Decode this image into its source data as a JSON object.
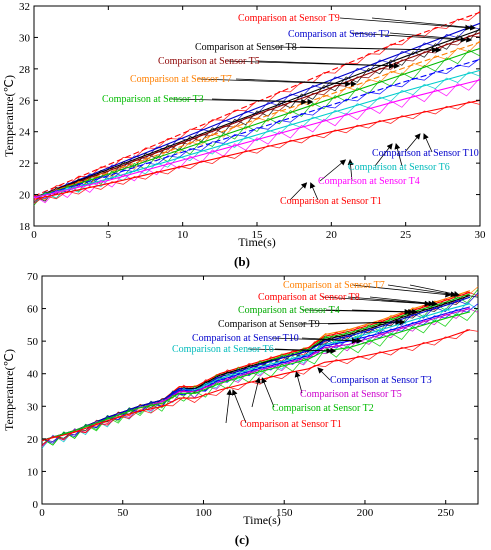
{
  "chart_data": [
    {
      "type": "line",
      "panel_label": "(b)",
      "title": "",
      "xlabel": "Time(s)",
      "ylabel": "Temperature(℃)",
      "xlim": [
        0,
        30
      ],
      "ylim": [
        18,
        32
      ],
      "xticks": [
        "0",
        "5",
        "10",
        "15",
        "20",
        "25",
        "30"
      ],
      "yticks": [
        "18",
        "20",
        "22",
        "24",
        "26",
        "28",
        "30",
        "32"
      ],
      "grid": false,
      "x": [
        0,
        5,
        10,
        15,
        20,
        25,
        30
      ],
      "series": [
        {
          "name": "T9",
          "color": "#ff0000",
          "style": "dashed",
          "values": [
            19.9,
            21.9,
            23.9,
            25.9,
            27.9,
            29.9,
            31.6
          ]
        },
        {
          "name": "T2",
          "color": "#0000cc",
          "style": "solid",
          "values": [
            19.8,
            21.7,
            23.6,
            25.5,
            27.3,
            29.1,
            30.9
          ]
        },
        {
          "name": "T8",
          "color": "#000000",
          "style": "solid",
          "values": [
            19.8,
            21.6,
            23.4,
            25.2,
            27.0,
            28.8,
            30.5
          ]
        },
        {
          "name": "T5",
          "color": "#8b0000",
          "style": "solid",
          "values": [
            19.8,
            21.5,
            23.3,
            25.1,
            26.8,
            28.6,
            30.3
          ]
        },
        {
          "name": "T7",
          "color": "#ff7f00",
          "style": "dashed",
          "values": [
            19.8,
            21.4,
            23.1,
            24.8,
            26.4,
            28.1,
            29.7
          ]
        },
        {
          "name": "T3",
          "color": "#00bb00",
          "style": "solid",
          "values": [
            19.8,
            21.3,
            22.9,
            24.5,
            26.1,
            27.7,
            29.3
          ]
        },
        {
          "name": "T10",
          "color": "#0000ff",
          "style": "dashed",
          "values": [
            19.8,
            21.2,
            22.7,
            24.2,
            25.7,
            27.2,
            28.6
          ]
        },
        {
          "name": "T6",
          "color": "#00cccc",
          "style": "solid",
          "values": [
            19.8,
            21.0,
            22.4,
            23.8,
            25.2,
            26.6,
            27.9
          ]
        },
        {
          "name": "T4",
          "color": "#ff00ff",
          "style": "solid",
          "values": [
            19.8,
            20.9,
            22.2,
            23.5,
            24.8,
            26.1,
            27.3
          ]
        },
        {
          "name": "T1",
          "color": "#ff0000",
          "style": "solid",
          "values": [
            19.7,
            20.7,
            21.8,
            22.9,
            24.0,
            25.0,
            26.0
          ]
        }
      ],
      "annotations": [
        {
          "text": "Comparison at Sensor T9",
          "color": "#ff0000"
        },
        {
          "text": "Comparison at Sensor T2",
          "color": "#0000cc"
        },
        {
          "text": "Comparison at Sensor T8",
          "color": "#000000"
        },
        {
          "text": "Comparison at Sensor T5",
          "color": "#8b0000"
        },
        {
          "text": "Comparison at Sensor T7",
          "color": "#ff7f00"
        },
        {
          "text": "Comparison at Sensor T3",
          "color": "#00bb00"
        },
        {
          "text": "Comparison at Sensor T10",
          "color": "#0000cc"
        },
        {
          "text": "Comparison at Sensor T6",
          "color": "#00bbbb"
        },
        {
          "text": "Comparison at Sensor T4",
          "color": "#ff00ff"
        },
        {
          "text": "Comparison at Sensor T1",
          "color": "#ff0000"
        }
      ]
    },
    {
      "type": "line",
      "panel_label": "(c)",
      "title": "",
      "xlabel": "Time(s)",
      "ylabel": "Temperature(℃)",
      "xlim": [
        0,
        270
      ],
      "ylim": [
        0,
        70
      ],
      "xticks": [
        "0",
        "50",
        "100",
        "150",
        "200",
        "250"
      ],
      "yticks": [
        "0",
        "10",
        "20",
        "30",
        "40",
        "50",
        "60",
        "70"
      ],
      "grid": false,
      "x": [
        0,
        20,
        40,
        60,
        75,
        85,
        95,
        110,
        130,
        150,
        165,
        175,
        190,
        210,
        230,
        250,
        265
      ],
      "series": [
        {
          "name": "T7",
          "color": "#ff7f00",
          "style": "solid",
          "values": [
            19.5,
            22.5,
            26.5,
            30,
            32,
            36,
            36,
            40,
            43,
            46,
            48,
            52,
            53.5,
            56.5,
            60,
            63,
            65.5
          ]
        },
        {
          "name": "T8",
          "color": "#ff0000",
          "style": "solid",
          "values": [
            19.5,
            22.5,
            26.5,
            30,
            32,
            36,
            36,
            40,
            43,
            46,
            48,
            51.5,
            53,
            56,
            59.5,
            62.5,
            65
          ]
        },
        {
          "name": "T4",
          "color": "#00bb00",
          "style": "solid",
          "values": [
            19.5,
            22.5,
            26.5,
            30,
            32,
            35.5,
            35.5,
            39.5,
            42.5,
            45.5,
            47.5,
            51,
            52.5,
            55.5,
            59,
            62,
            64.5
          ]
        },
        {
          "name": "T9",
          "color": "#000000",
          "style": "solid",
          "values": [
            19.5,
            22.5,
            26.5,
            30,
            32,
            35.5,
            35.5,
            39.5,
            42.5,
            45,
            47,
            50.5,
            52,
            55,
            58.5,
            61.5,
            64
          ]
        },
        {
          "name": "T10",
          "color": "#0000cc",
          "style": "solid",
          "values": [
            19.5,
            22.5,
            26.5,
            30,
            32,
            35.5,
            35,
            39,
            42,
            45,
            47,
            50,
            51.5,
            54.5,
            58,
            61,
            63.5
          ]
        },
        {
          "name": "T6",
          "color": "#00cccc",
          "style": "solid",
          "values": [
            19.5,
            22.5,
            26,
            29.5,
            31.5,
            35,
            35,
            38.5,
            41.5,
            44,
            46,
            49,
            50.5,
            53.5,
            56.5,
            59.5,
            61.5
          ]
        },
        {
          "name": "T3",
          "color": "#0000ff",
          "style": "solid",
          "values": [
            19.5,
            22.5,
            26,
            29.5,
            31.5,
            35,
            34.5,
            38,
            41,
            43.5,
            45.5,
            48.5,
            50,
            52.5,
            55.5,
            58.5,
            60.5
          ]
        },
        {
          "name": "T5",
          "color": "#cc00cc",
          "style": "solid",
          "values": [
            19.5,
            22.5,
            26,
            29.5,
            31.5,
            34.5,
            34.5,
            37.5,
            40.5,
            43,
            45,
            48,
            49,
            52,
            55,
            58,
            60
          ]
        },
        {
          "name": "T2",
          "color": "#00cc00",
          "style": "solid",
          "values": [
            19.5,
            22.5,
            26,
            29.5,
            31,
            34,
            34,
            37,
            40,
            42.5,
            44.5,
            47,
            48,
            51,
            54,
            57,
            59
          ]
        },
        {
          "name": "T1",
          "color": "#ff0000",
          "style": "solid",
          "values": [
            19.5,
            22,
            25.5,
            28.5,
            30,
            32.5,
            32.5,
            35,
            37.5,
            40,
            41.5,
            43.5,
            44.5,
            46.5,
            48.5,
            51,
            53.5
          ]
        }
      ],
      "annotations": [
        {
          "text": "Comparison at Sensor T7",
          "color": "#ff7f00"
        },
        {
          "text": "Comparison at Sensor T8",
          "color": "#ff0000"
        },
        {
          "text": "Comparison at Sensor T4",
          "color": "#00aa00"
        },
        {
          "text": "Comparison at Sensor T9",
          "color": "#000000"
        },
        {
          "text": "Comparison at Sensor T10",
          "color": "#0000cc"
        },
        {
          "text": "Comparison at Sensor T6",
          "color": "#00bbbb"
        },
        {
          "text": "Comparison at Sensor T3",
          "color": "#0000cc"
        },
        {
          "text": "Comparison at Sensor T5",
          "color": "#cc00cc"
        },
        {
          "text": "Comparison at Sensor T2",
          "color": "#00bb00"
        },
        {
          "text": "Comparison at Sensor T1",
          "color": "#ff0000"
        }
      ]
    }
  ]
}
